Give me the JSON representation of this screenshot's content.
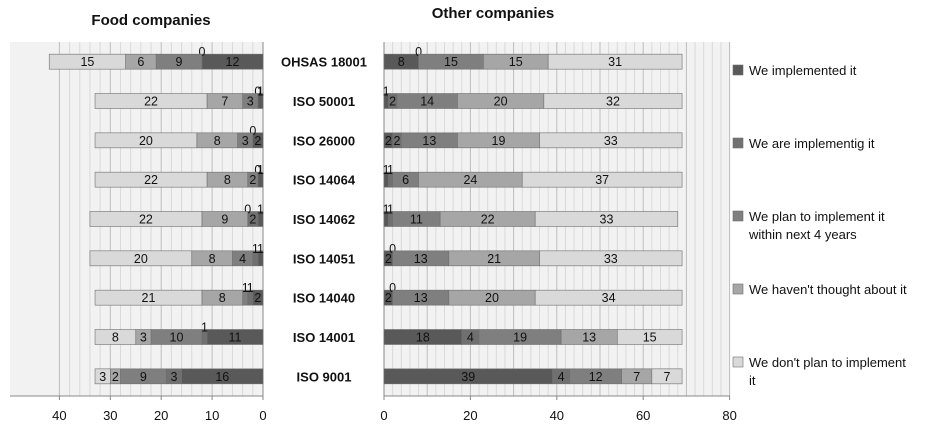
{
  "chart_data": {
    "type": "bar",
    "orientation": "horizontal",
    "stacked": true,
    "grid": true,
    "legend_position": "right",
    "categories": [
      "OHSAS 18001",
      "ISO 50001",
      "ISO 26000",
      "ISO 14064",
      "ISO 14062",
      "ISO 14051",
      "ISO 14040",
      "ISO 14001",
      "ISO 9001"
    ],
    "legend": [
      {
        "name": "We implemented it",
        "lines": [
          "We implemented it"
        ],
        "color": "#595959"
      },
      {
        "name": "We are implementig it",
        "lines": [
          "We are implementig it"
        ],
        "color": "#707070"
      },
      {
        "name": "We plan to implement it within next 4 years",
        "lines": [
          "We plan to implement it",
          "within next 4 years"
        ],
        "color": "#7f7f7f"
      },
      {
        "name": "We haven't thought about it",
        "lines": [
          "We haven't thought about it"
        ],
        "color": "#a6a6a6"
      },
      {
        "name": "We don't plan to implement it",
        "lines": [
          "We don't plan to implement",
          "it"
        ],
        "color": "#d9d9d9"
      }
    ],
    "panels": [
      {
        "title": "Food companies",
        "reversed": true,
        "xlim": [
          0,
          40
        ],
        "ticks": [
          40,
          30,
          20,
          10,
          0
        ],
        "series": [
          {
            "name": "We implemented it",
            "values": [
              12,
              1,
              2,
              1,
              1,
              1,
              2,
              11,
              16
            ]
          },
          {
            "name": "We are implementig it",
            "values": [
              0,
              0,
              0,
              0,
              2,
              1,
              1,
              1,
              3
            ]
          },
          {
            "name": "We plan to implement it within next 4 years",
            "values": [
              9,
              3,
              3,
              2,
              0,
              4,
              1,
              10,
              9
            ]
          },
          {
            "name": "We haven't thought about it",
            "values": [
              6,
              7,
              8,
              8,
              9,
              8,
              8,
              3,
              2
            ]
          },
          {
            "name": "We don't plan to implement it",
            "values": [
              15,
              22,
              20,
              22,
              22,
              20,
              21,
              8,
              3
            ]
          }
        ]
      },
      {
        "title": "Other companies",
        "reversed": false,
        "xlim": [
          0,
          80
        ],
        "ticks": [
          0,
          20,
          40,
          60,
          80
        ],
        "series": [
          {
            "name": "We implemented it",
            "values": [
              8,
              1,
              2,
              1,
              1,
              2,
              2,
              18,
              39
            ]
          },
          {
            "name": "We are implementig it",
            "values": [
              0,
              2,
              2,
              1,
              1,
              0,
              0,
              4,
              4
            ]
          },
          {
            "name": "We plan to implement it within next 4 years",
            "values": [
              15,
              14,
              13,
              6,
              11,
              13,
              13,
              19,
              12
            ]
          },
          {
            "name": "We haven't thought about it",
            "values": [
              15,
              20,
              19,
              24,
              22,
              21,
              20,
              13,
              7
            ]
          },
          {
            "name": "We don't plan to implement it",
            "values": [
              31,
              32,
              33,
              37,
              33,
              33,
              34,
              15,
              7
            ]
          }
        ]
      }
    ]
  }
}
